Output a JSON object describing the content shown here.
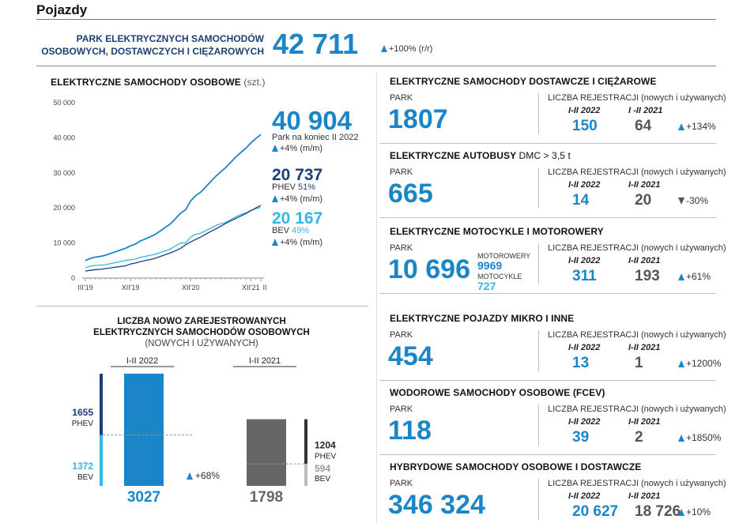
{
  "header": {
    "title": "Pojazdy"
  },
  "top": {
    "label_line1": "PARK ELEKTRYCZNYCH SAMOCHODÓW",
    "label_line2": "OSOBOWYCH, DOSTAWCZYCH I CIĘŻAROWYCH",
    "value": "42 711",
    "change": "+100% (r/r)"
  },
  "chart_data": [
    {
      "type": "line",
      "title": "ELEKTRYCZNE SAMOCHODY OSOBOWE",
      "unit": "(szt.)",
      "ylim": [
        0,
        50000
      ],
      "yticks": [
        "0",
        "10 000",
        "20 000",
        "30 000",
        "40 000",
        "50 000"
      ],
      "xticks": [
        "III'19",
        "XII'19",
        "XII'20",
        "XII'21",
        "II"
      ],
      "x": [
        "III'19",
        "IV'19",
        "V'19",
        "VI'19",
        "VII'19",
        "VIII'19",
        "IX'19",
        "X'19",
        "XI'19",
        "XII'19",
        "I'20",
        "II'20",
        "III'20",
        "IV'20",
        "V'20",
        "VI'20",
        "VII'20",
        "VIII'20",
        "IX'20",
        "X'20",
        "XI'20",
        "XII'20",
        "I'21",
        "II'21",
        "III'21",
        "IV'21",
        "V'21",
        "VI'21",
        "VII'21",
        "VIII'21",
        "IX'21",
        "X'21",
        "XI'21",
        "XII'21",
        "I'22",
        "II'22"
      ],
      "series": [
        {
          "name": "Park",
          "values": [
            5000,
            5600,
            6000,
            6200,
            6500,
            7000,
            7500,
            8000,
            8500,
            9200,
            9700,
            10600,
            11200,
            11800,
            12500,
            13500,
            14500,
            15500,
            17000,
            18500,
            19500,
            22000,
            23500,
            24500,
            26000,
            27500,
            29000,
            30300,
            31500,
            33000,
            34500,
            35800,
            37000,
            38500,
            39800,
            40904
          ]
        },
        {
          "name": "PHEV",
          "values": [
            2000,
            2200,
            2400,
            2500,
            2700,
            2900,
            3100,
            3300,
            3500,
            4000,
            4300,
            4700,
            5000,
            5300,
            5700,
            6200,
            6700,
            7200,
            7800,
            8500,
            9500,
            10300,
            11000,
            11700,
            12500,
            13300,
            14000,
            14800,
            15600,
            16300,
            17000,
            17700,
            18400,
            19200,
            20000,
            20737
          ]
        },
        {
          "name": "BEV",
          "values": [
            3000,
            3400,
            3600,
            3700,
            3800,
            4100,
            4400,
            4700,
            5000,
            5200,
            5400,
            5900,
            6200,
            6500,
            6800,
            7300,
            7800,
            8300,
            9200,
            10000,
            10000,
            11700,
            12500,
            12800,
            13500,
            14200,
            15000,
            15500,
            15900,
            16700,
            17500,
            18100,
            18600,
            19300,
            19800,
            20167
          ]
        }
      ],
      "legend": [
        {
          "value": "40 904",
          "label": "Park na koniec II 2022",
          "change": "+4% (m/m)"
        },
        {
          "value": "20 737",
          "label": "PHEV",
          "share": "51%",
          "change": "+4% (m/m)"
        },
        {
          "value": "20 167",
          "label": "BEV",
          "share": "49%",
          "change": "+4% (m/m)"
        }
      ],
      "colors": {
        "park": "#1a86c7",
        "phev": "#1d3f78",
        "bev": "#36b5e6"
      }
    },
    {
      "type": "bar",
      "title_line1": "LICZBA NOWO ZAREJESTROWANYCH",
      "title_line2": "ELEKTRYCZNYCH SAMOCHODÓW OSOBOWYCH",
      "title_line3": "(NOWYCH I UŻYWANYCH)",
      "categories": [
        "I-II 2022",
        "I-II 2021"
      ],
      "totals": [
        3027,
        1798
      ],
      "series": [
        {
          "name": "PHEV",
          "values": [
            1655,
            1204
          ]
        },
        {
          "name": "BEV",
          "values": [
            1372,
            594
          ]
        }
      ],
      "change": "+68%",
      "colors": {
        "bar2022": "#1a86c7",
        "bar2021": "#666666",
        "phev2022": "#1d3f78",
        "bev2022": "#36b5e6",
        "phev2021": "#333333",
        "bev2021": "#bbbbbb"
      }
    }
  ],
  "cards": [
    {
      "title": "ELEKTRYCZNE SAMOCHODY DOSTAWCZE I CIĘŻAROWE",
      "subtitle": "",
      "park_label": "PARK",
      "park": "1807",
      "reg_label": "LICZBA REJESTRACJI (nowych i używanych)",
      "p1": "I-II 2022",
      "p2": "I -II 2021",
      "v1": "150",
      "v2": "64",
      "change": "+134%",
      "dir": "up"
    },
    {
      "title": "ELEKTRYCZNE AUTOBUSY",
      "subtitle": "DMC > 3,5 t",
      "park_label": "PARK",
      "park": "665",
      "reg_label": "LICZBA REJESTRACJI (nowych i używanych)",
      "p1": "I-II 2022",
      "p2": "I-II 2021",
      "v1": "14",
      "v2": "20",
      "change": "-30%",
      "dir": "down"
    },
    {
      "title": "ELEKTRYCZNE MOTOCYKLE I MOTOROWERY",
      "subtitle": "",
      "park_label": "PARK",
      "park": "10 696",
      "sub1_label": "MOTOROWERY",
      "sub1": "9969",
      "sub2_label": "MOTOCYKLE",
      "sub2": "727",
      "reg_label": "LICZBA REJESTRACJI (nowych i używanych)",
      "p1": "I-II 2022",
      "p2": "I-II 2021",
      "v1": "311",
      "v2": "193",
      "change": "+61%",
      "dir": "up"
    },
    {
      "title": "ELEKTRYCZNE POJAZDY MIKRO I INNE",
      "subtitle": "",
      "park_label": "PARK",
      "park": "454",
      "reg_label": "LICZBA REJESTRACJI (nowych i używanych)",
      "p1": "I-II 2022",
      "p2": "I-II 2021",
      "v1": "13",
      "v2": "1",
      "change": "+1200%",
      "dir": "up"
    },
    {
      "title": "WODOROWE SAMOCHODY OSOBOWE (FCEV)",
      "subtitle": "",
      "park_label": "PARK",
      "park": "118",
      "reg_label": "LICZBA REJESTRACJI (nowych i używanych)",
      "p1": "I-II 2022",
      "p2": "I-II 2021",
      "v1": "39",
      "v2": "2",
      "change": "+1850%",
      "dir": "up"
    },
    {
      "title": "HYBRYDOWE SAMOCHODY OSOBOWE I DOSTAWCZE",
      "subtitle": "",
      "park_label": "PARK",
      "park": "346 324",
      "reg_label": "LICZBA REJESTRACJI (nowych i używanych)",
      "p1": "I-II 2022",
      "p2": "I-II 2021",
      "v1": "20 627",
      "v2": "18 726",
      "change": "+10%",
      "dir": "up"
    }
  ]
}
